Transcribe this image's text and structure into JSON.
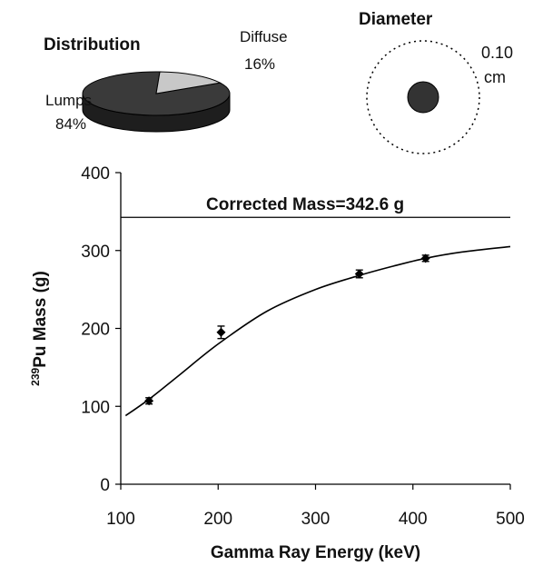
{
  "distribution": {
    "title": "Distribution",
    "slices": [
      {
        "name": "Lumps",
        "value": 84,
        "value_label": "84%",
        "color": "#3a3a3a"
      },
      {
        "name": "Diffuse",
        "value": 16,
        "value_label": "16%",
        "color": "#c8c8c8"
      }
    ]
  },
  "diameter": {
    "title": "Diameter",
    "value_label": "0.10",
    "unit_label": "cm"
  },
  "chart_data": {
    "type": "scatter",
    "xlabel": "Gamma Ray Energy (keV)",
    "ylabel_sup": "239",
    "ylabel_main": "Pu Mass (g)",
    "xlim": [
      100,
      500
    ],
    "ylim": [
      0,
      400
    ],
    "xticks": [
      100,
      200,
      300,
      400,
      500
    ],
    "yticks": [
      0,
      100,
      200,
      300,
      400
    ],
    "grid": false,
    "points": [
      {
        "x": 129,
        "y": 107,
        "err": 4
      },
      {
        "x": 203,
        "y": 195,
        "err": 8
      },
      {
        "x": 345,
        "y": 270,
        "err": 5
      },
      {
        "x": 413,
        "y": 290,
        "err": 4
      }
    ],
    "fit_curve": [
      [
        105,
        88
      ],
      [
        130,
        110
      ],
      [
        160,
        140
      ],
      [
        200,
        180
      ],
      [
        250,
        222
      ],
      [
        300,
        250
      ],
      [
        345,
        268
      ],
      [
        380,
        280
      ],
      [
        413,
        290
      ],
      [
        450,
        298
      ],
      [
        500,
        305
      ]
    ],
    "reference_line": {
      "y": 342.6,
      "label": "Corrected Mass=342.6 g"
    }
  }
}
